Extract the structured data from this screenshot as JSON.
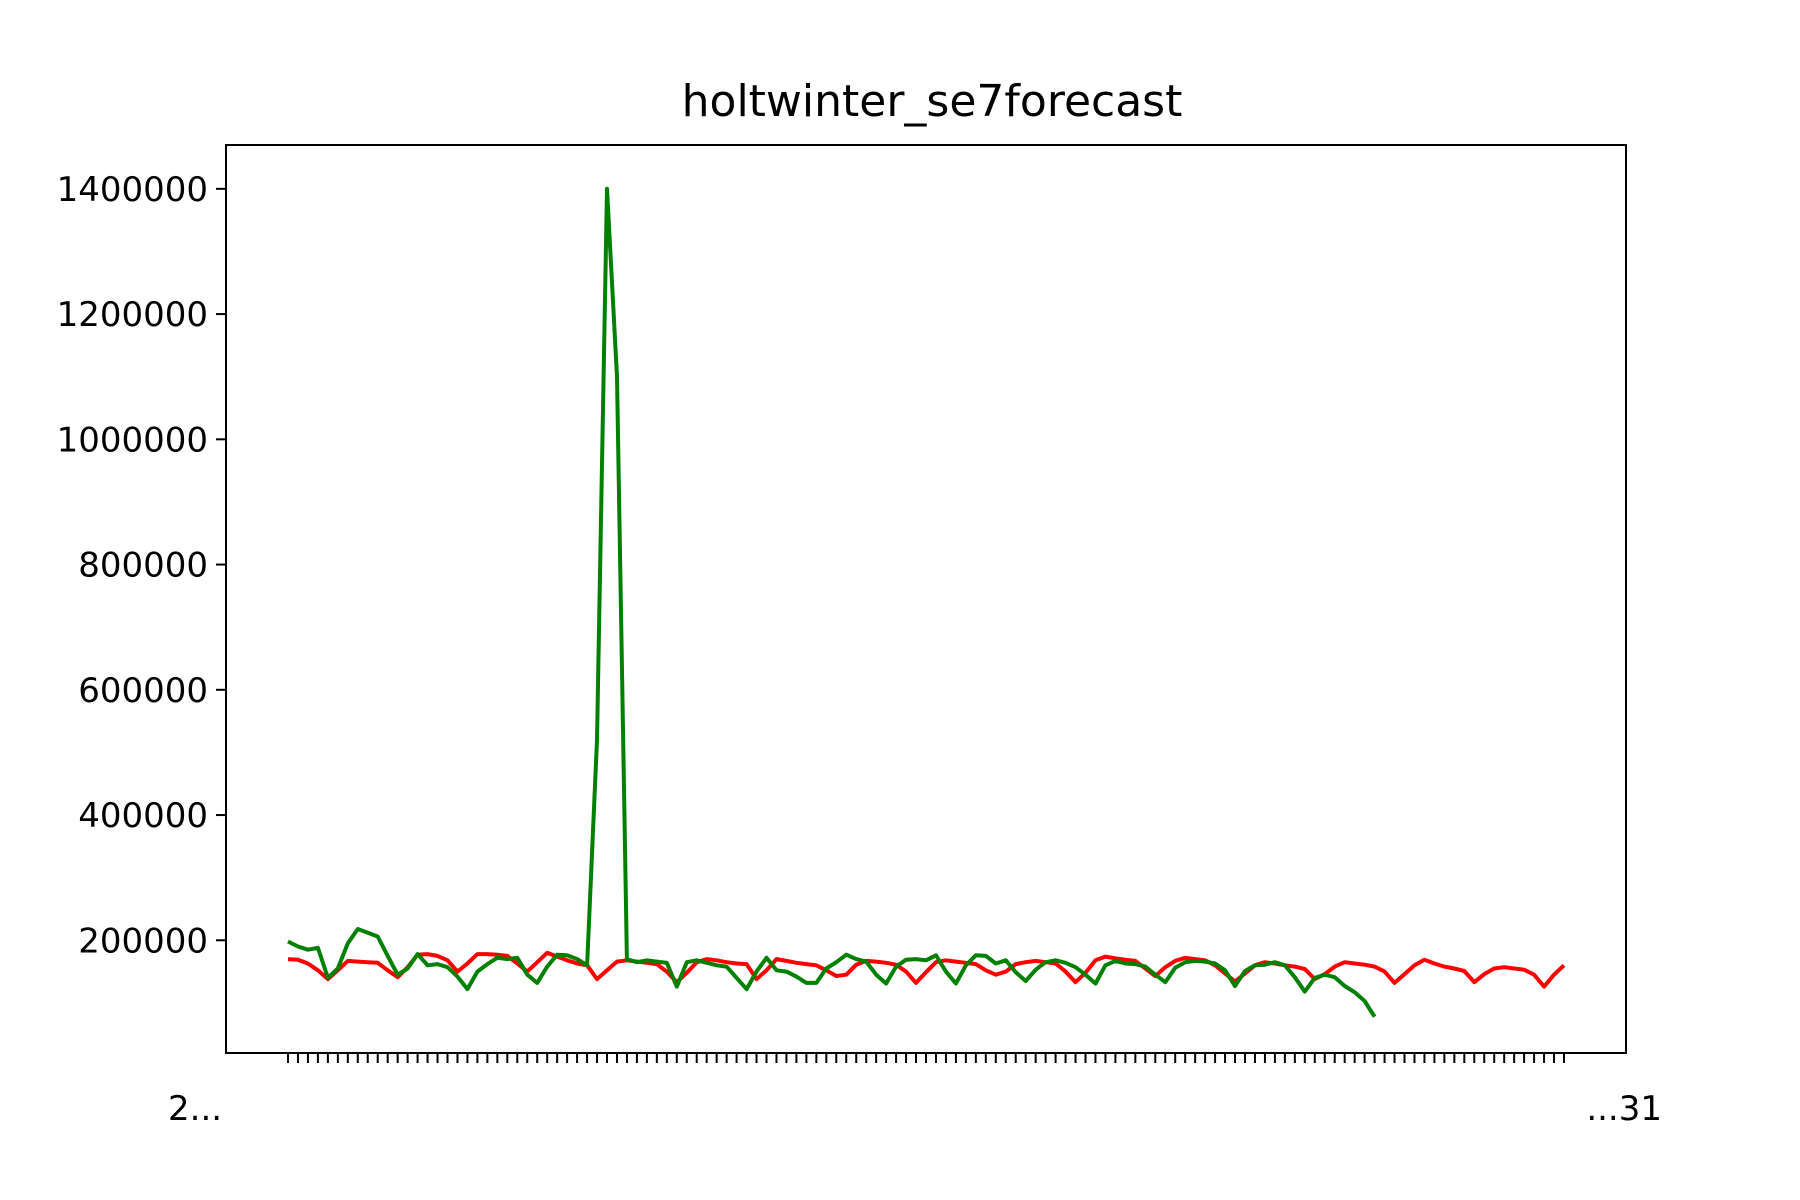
{
  "chart_data": {
    "type": "line",
    "title": "holtwinter_se7forecast",
    "xlabel": "",
    "ylabel": "",
    "ylim": [
      20000,
      1470000
    ],
    "yticks": [
      200000,
      400000,
      600000,
      800000,
      1000000,
      1200000,
      1400000
    ],
    "ytick_labels": [
      "200000",
      "400000",
      "600000",
      "800000",
      "1000000",
      "1200000",
      "1400000"
    ],
    "x_tick_label_visible": [
      "2...",
      "...31"
    ],
    "grid": false,
    "legend": "none",
    "series": [
      {
        "color": "#ff0000",
        "values": [
          170000,
          169000,
          163000,
          152000,
          138000,
          152000,
          167000,
          166000,
          165000,
          164000,
          152000,
          141000,
          157000,
          177000,
          178000,
          175000,
          168000,
          150000,
          163000,
          178000,
          178000,
          177000,
          175000,
          163000,
          150000,
          165000,
          180000,
          174000,
          168000,
          163000,
          160000,
          138000,
          152000,
          166000,
          168000,
          166000,
          164000,
          162000,
          150000,
          133000,
          148000,
          165000,
          170000,
          168000,
          165000,
          163000,
          162000,
          138000,
          152000,
          170000,
          167000,
          164000,
          162000,
          160000,
          152000,
          143000,
          145000,
          161000,
          167000,
          166000,
          164000,
          161000,
          150000,
          132000,
          149000,
          165000,
          168000,
          166000,
          164000,
          162000,
          152000,
          145000,
          150000,
          162000,
          165000,
          167000,
          165000,
          163000,
          150000,
          133000,
          148000,
          168000,
          174000,
          171000,
          169000,
          167000,
          155000,
          143000,
          157000,
          167000,
          172000,
          170000,
          168000,
          160000,
          147000,
          134000,
          147000,
          160000,
          165000,
          163000,
          160000,
          158000,
          154000,
          138000,
          146000,
          158000,
          165000,
          163000,
          161000,
          158000,
          150000,
          132000,
          146000,
          160000,
          169000,
          163000,
          158000,
          155000,
          151000,
          133000,
          146000,
          155000,
          157000,
          155000,
          153000,
          145000,
          126000,
          145000,
          160000
        ],
        "name": ""
      },
      {
        "color": "#008000",
        "values": [
          198000,
          190000,
          185000,
          188000,
          140000,
          155000,
          195000,
          218000,
          212000,
          206000,
          175000,
          145000,
          155000,
          178000,
          160000,
          162000,
          157000,
          142000,
          122000,
          150000,
          162000,
          172000,
          170000,
          172000,
          145000,
          132000,
          158000,
          177000,
          176000,
          170000,
          160000,
          520000,
          1400000,
          1100000,
          170000,
          165000,
          168000,
          166000,
          164000,
          126000,
          165000,
          168000,
          164000,
          160000,
          158000,
          140000,
          122000,
          150000,
          172000,
          152000,
          150000,
          142000,
          132000,
          132000,
          155000,
          165000,
          177000,
          170000,
          166000,
          145000,
          131000,
          158000,
          169000,
          170000,
          168000,
          176000,
          150000,
          131000,
          160000,
          176000,
          175000,
          163000,
          168000,
          149000,
          135000,
          153000,
          165000,
          168000,
          164000,
          157000,
          145000,
          131000,
          160000,
          167000,
          163000,
          162000,
          158000,
          145000,
          133000,
          156000,
          165000,
          167000,
          166000,
          163000,
          152000,
          127000,
          151000,
          160000,
          161000,
          165000,
          160000,
          141000,
          118000,
          140000,
          145000,
          141000,
          127000,
          117000,
          103000,
          78000
        ],
        "name": ""
      }
    ]
  }
}
